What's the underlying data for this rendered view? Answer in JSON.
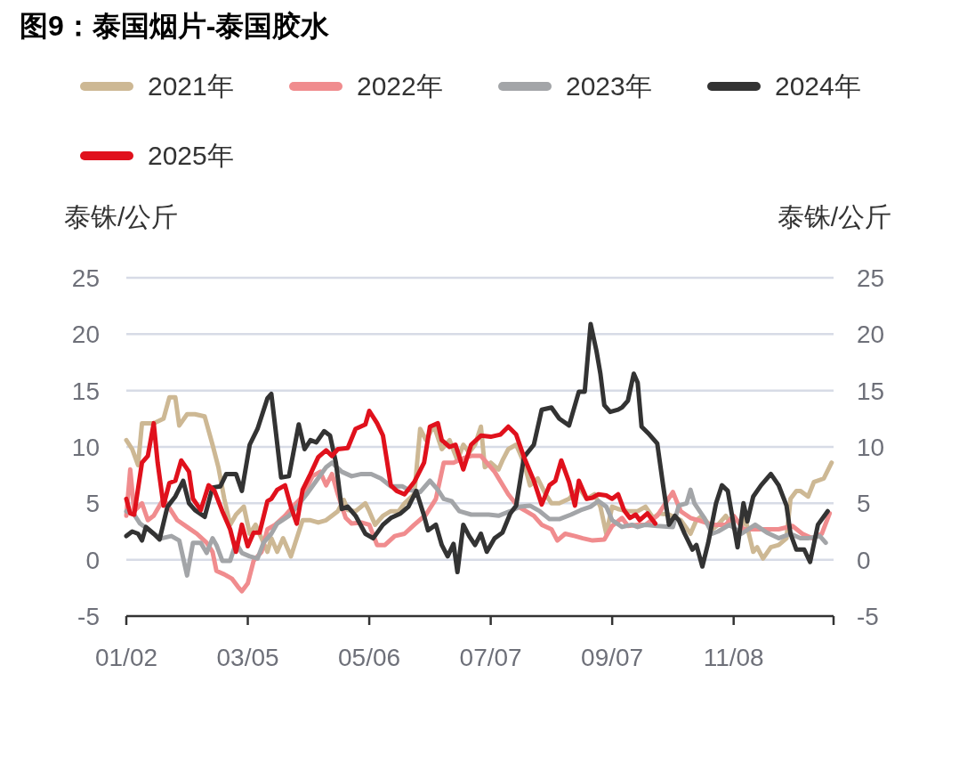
{
  "chart_data": {
    "type": "line",
    "title": "图9：泰国烟片-泰国胶水",
    "ylabel": "泰铢/公斤",
    "y2label": "泰铢/公斤",
    "xlim": [
      "--01-02",
      "--12-29"
    ],
    "xticks": [
      {
        "value": "--01-02",
        "label": "01/02"
      },
      {
        "value": "--03-05",
        "label": "03/05"
      },
      {
        "value": "--05-06",
        "label": "05/06"
      },
      {
        "value": "--07-07",
        "label": "07/07"
      },
      {
        "value": "--09-07",
        "label": "09/07"
      },
      {
        "value": "--11-08",
        "label": "11/08"
      },
      {
        "value": "--12-29",
        "label": null
      }
    ],
    "ylim": [
      -5,
      25
    ],
    "yticks": [
      -5,
      0,
      5,
      10,
      15,
      20,
      25
    ],
    "y2lim": [
      -5,
      25
    ],
    "y2ticks": [
      -5,
      0,
      5,
      10,
      15,
      20,
      25
    ],
    "grid": "y",
    "legend": "top",
    "series": [
      {
        "name": "2021年",
        "color": "#cdb894",
        "x": [
          "--01-02",
          "--01-05",
          "--01-08",
          "--01-10",
          "--01-13",
          "--01-16",
          "--01-21",
          "--01-24",
          "--01-27",
          "--01-29",
          "--02-02",
          "--02-06",
          "--02-11",
          "--02-15",
          "--02-18",
          "--02-21",
          "--02-24",
          "--02-27",
          "--03-03",
          "--03-06",
          "--03-09",
          "--03-12",
          "--03-15",
          "--03-17",
          "--03-20",
          "--03-23",
          "--03-27",
          "--03-30",
          "--04-02",
          "--04-06",
          "--04-10",
          "--04-14",
          "--04-20",
          "--04-23",
          "--04-25",
          "--04-29",
          "--05-04",
          "--05-06",
          "--05-09",
          "--05-13",
          "--05-17",
          "--05-21",
          "--05-24",
          "--05-29",
          "--06-01",
          "--06-04",
          "--06-08",
          "--06-12",
          "--06-16",
          "--06-20",
          "--06-23",
          "--06-26",
          "--06-29",
          "--07-02",
          "--07-04",
          "--07-07",
          "--07-11",
          "--07-13",
          "--07-16",
          "--07-20",
          "--07-24",
          "--07-27",
          "--07-31",
          "--08-04",
          "--08-07",
          "--08-11",
          "--08-16",
          "--08-21",
          "--08-25",
          "--08-29",
          "--09-01",
          "--09-04",
          "--09-07",
          "--09-10",
          "--09-15",
          "--09-20",
          "--09-24",
          "--09-28",
          "--10-01",
          "--10-06",
          "--10-12",
          "--10-17",
          "--10-20",
          "--10-23",
          "--10-28",
          "--10-31",
          "--11-04",
          "--11-07",
          "--11-10",
          "--11-14",
          "--11-18",
          "--11-20",
          "--11-23",
          "--11-27",
          "--12-01",
          "--12-05",
          "--12-07",
          "--12-10",
          "--12-12",
          "--12-16",
          "--12-19",
          "--12-24",
          "--12-28"
        ],
        "values": [
          10.6,
          9.8,
          8.4,
          12.1,
          12.1,
          12.1,
          12.5,
          14.4,
          14.4,
          11.9,
          12.9,
          12.9,
          12.7,
          10.2,
          8.2,
          5.4,
          3.1,
          4.0,
          4.7,
          2.3,
          3.1,
          1.9,
          0.7,
          1.9,
          0.7,
          1.9,
          0.3,
          1.9,
          3.5,
          3.5,
          3.3,
          3.5,
          4.3,
          5.3,
          4.4,
          4.3,
          5.0,
          4.3,
          3.1,
          3.9,
          4.3,
          4.3,
          5.0,
          5.8,
          11.6,
          10.6,
          11.9,
          9.8,
          10.6,
          8.8,
          10.2,
          9.5,
          10.2,
          11.8,
          8.2,
          8.6,
          8.0,
          8.8,
          9.8,
          10.2,
          8.6,
          6.6,
          7.2,
          5.8,
          5.0,
          5.0,
          5.4,
          6.4,
          5.4,
          5.8,
          4.7,
          2.3,
          4.7,
          4.5,
          4.3,
          4.3,
          4.7,
          3.7,
          4.1,
          4.0,
          3.5,
          2.3,
          3.5,
          3.9,
          2.7,
          3.1,
          3.9,
          3.1,
          2.3,
          3.6,
          0.7,
          1.1,
          0.1,
          1.1,
          1.3,
          1.9,
          5.4,
          6.1,
          6.1,
          5.6,
          6.9,
          7.2,
          8.6
        ]
      },
      {
        "name": "2022年",
        "color": "#f08c8e",
        "x": [
          "--01-02",
          "--01-04",
          "--01-06",
          "--01-10",
          "--01-13",
          "--01-16",
          "--01-21",
          "--01-25",
          "--01-28",
          "--02-02",
          "--02-07",
          "--02-12",
          "--02-15",
          "--02-17",
          "--02-21",
          "--02-25",
          "--02-28",
          "--03-02",
          "--03-05",
          "--03-08",
          "--03-12",
          "--03-15",
          "--03-19",
          "--03-24",
          "--03-28",
          "--04-02",
          "--04-07",
          "--04-11",
          "--04-14",
          "--04-17",
          "--04-20",
          "--04-24",
          "--04-27",
          "--05-02",
          "--05-06",
          "--05-10",
          "--05-14",
          "--05-19",
          "--05-24",
          "--05-29",
          "--06-04",
          "--06-09",
          "--06-13",
          "--06-18",
          "--06-23",
          "--06-27",
          "--07-02",
          "--07-09",
          "--07-16",
          "--07-21",
          "--07-25",
          "--07-29",
          "--08-02",
          "--08-07",
          "--08-10",
          "--08-14",
          "--08-19",
          "--08-23",
          "--08-28",
          "--09-03",
          "--09-07",
          "--09-12",
          "--09-15",
          "--09-20",
          "--09-24",
          "--09-30",
          "--10-08",
          "--10-12",
          "--10-17",
          "--10-21",
          "--10-28",
          "--11-04",
          "--11-08",
          "--11-13",
          "--11-19",
          "--11-27",
          "--12-01",
          "--12-08",
          "--12-13",
          "--12-18",
          "--12-23",
          "--12-27"
        ],
        "values": [
          3.9,
          8.0,
          4.3,
          5.0,
          3.5,
          3.9,
          5.4,
          4.3,
          3.5,
          2.9,
          2.3,
          1.5,
          0.7,
          -1.0,
          -1.3,
          -1.7,
          -2.4,
          -2.8,
          -2.1,
          -0.1,
          0.7,
          2.7,
          3.1,
          3.9,
          4.7,
          5.6,
          7.4,
          7.8,
          6.6,
          7.6,
          5.8,
          3.7,
          3.2,
          3.3,
          3.1,
          1.3,
          1.3,
          2.1,
          2.3,
          3.1,
          4.0,
          5.4,
          8.6,
          8.6,
          9.0,
          9.2,
          9.2,
          7.8,
          5.8,
          4.7,
          4.3,
          3.9,
          3.1,
          2.7,
          1.7,
          2.3,
          2.1,
          1.9,
          1.7,
          1.8,
          3.0,
          3.7,
          3.0,
          3.1,
          3.1,
          3.9,
          6.0,
          4.3,
          3.7,
          3.5,
          3.1,
          3.1,
          3.9,
          2.7,
          2.7,
          2.7,
          2.7,
          3.0,
          2.3,
          1.9,
          2.3,
          4.1
        ]
      },
      {
        "name": "2023年",
        "color": "#a3a5a8",
        "x": [
          "--01-02",
          "--01-06",
          "--01-09",
          "--01-13",
          "--01-16",
          "--01-20",
          "--01-25",
          "--01-29",
          "--02-02",
          "--02-05",
          "--02-09",
          "--02-12",
          "--02-15",
          "--02-17",
          "--02-20",
          "--02-24",
          "--02-27",
          "--03-02",
          "--03-06",
          "--03-10",
          "--03-13",
          "--03-17",
          "--03-20",
          "--03-26",
          "--03-30",
          "--04-04",
          "--04-09",
          "--04-14",
          "--04-17",
          "--04-22",
          "--04-27",
          "--05-02",
          "--05-07",
          "--05-12",
          "--05-17",
          "--05-23",
          "--05-26",
          "--06-01",
          "--06-06",
          "--06-10",
          "--06-13",
          "--06-17",
          "--06-21",
          "--06-27",
          "--07-02",
          "--07-06",
          "--07-11",
          "--07-17",
          "--07-22",
          "--07-27",
          "--08-01",
          "--08-06",
          "--08-11",
          "--08-17",
          "--08-22",
          "--08-27",
          "--08-31",
          "--09-04",
          "--09-07",
          "--09-12",
          "--09-17",
          "--09-20",
          "--09-24",
          "--09-30",
          "--10-08",
          "--10-11",
          "--10-15",
          "--10-17",
          "--10-19",
          "--10-24",
          "--10-28",
          "--10-31",
          "--11-06",
          "--11-12",
          "--11-19",
          "--11-25",
          "--12-01",
          "--12-07",
          "--12-12",
          "--12-16",
          "--12-22",
          "--12-25"
        ],
        "values": [
          4.3,
          4.0,
          3.2,
          2.7,
          2.3,
          1.9,
          2.1,
          1.7,
          -1.4,
          1.5,
          1.5,
          0.6,
          1.9,
          1.3,
          -0.1,
          -0.1,
          1.5,
          0.6,
          0.3,
          0.1,
          1.5,
          2.3,
          3.2,
          3.9,
          4.7,
          5.8,
          7.0,
          8.2,
          8.6,
          7.8,
          7.4,
          7.6,
          7.6,
          7.2,
          6.5,
          6.5,
          6.2,
          6.0,
          7.0,
          6.2,
          5.4,
          5.2,
          4.3,
          4.0,
          4.0,
          4.0,
          3.9,
          4.3,
          4.7,
          4.8,
          4.3,
          3.6,
          3.6,
          4.0,
          4.4,
          4.7,
          5.2,
          4.7,
          3.5,
          2.9,
          3.1,
          2.9,
          3.1,
          3.0,
          2.9,
          4.8,
          5.0,
          6.2,
          5.0,
          3.7,
          2.3,
          2.5,
          3.1,
          2.3,
          3.1,
          2.4,
          1.9,
          2.3,
          1.9,
          1.9,
          2.1,
          1.5
        ]
      },
      {
        "name": "2024年",
        "color": "#333333",
        "x": [
          "--01-02",
          "--01-05",
          "--01-08",
          "--01-10",
          "--01-12",
          "--01-16",
          "--01-19",
          "--01-23",
          "--01-27",
          "--01-31",
          "--02-03",
          "--02-06",
          "--02-11",
          "--02-15",
          "--02-19",
          "--02-22",
          "--02-27",
          "--03-02",
          "--03-06",
          "--03-10",
          "--03-15",
          "--03-17",
          "--03-19",
          "--03-22",
          "--03-26",
          "--03-31",
          "--04-03",
          "--04-06",
          "--04-09",
          "--04-13",
          "--04-16",
          "--04-19",
          "--04-22",
          "--04-25",
          "--04-29",
          "--05-04",
          "--05-08",
          "--05-13",
          "--05-17",
          "--05-22",
          "--05-26",
          "--05-30",
          "--06-03",
          "--06-05",
          "--06-09",
          "--06-12",
          "--06-15",
          "--06-18",
          "--06-20",
          "--06-23",
          "--06-26",
          "--06-29",
          "--07-02",
          "--07-05",
          "--07-09",
          "--07-13",
          "--07-17",
          "--07-20",
          "--07-24",
          "--07-29",
          "--08-02",
          "--08-07",
          "--08-11",
          "--08-16",
          "--08-21",
          "--08-24",
          "--08-27",
          "--08-30",
          "--09-01",
          "--09-03",
          "--09-06",
          "--09-10",
          "--09-12",
          "--09-15",
          "--09-18",
          "--09-20",
          "--09-22",
          "--09-26",
          "--09-30",
          "--10-03",
          "--10-06",
          "--10-09",
          "--10-11",
          "--10-14",
          "--10-18",
          "--10-20",
          "--10-23",
          "--10-26",
          "--10-30",
          "--11-02",
          "--11-05",
          "--11-08",
          "--11-10",
          "--11-13",
          "--11-15",
          "--11-18",
          "--11-22",
          "--11-27",
          "--12-01",
          "--12-05",
          "--12-07",
          "--12-10",
          "--12-14",
          "--12-17",
          "--12-21",
          "--12-26"
        ],
        "values": [
          2.1,
          2.5,
          2.3,
          1.7,
          2.9,
          2.3,
          1.8,
          4.7,
          5.6,
          7.0,
          5.0,
          4.4,
          3.8,
          6.4,
          6.5,
          7.6,
          7.6,
          6.1,
          10.2,
          11.6,
          14.3,
          14.7,
          11.8,
          7.3,
          7.4,
          12.0,
          9.8,
          10.6,
          10.4,
          11.4,
          11.0,
          8.6,
          4.5,
          4.7,
          3.9,
          2.3,
          1.9,
          3.1,
          3.7,
          4.1,
          4.7,
          6.1,
          3.9,
          2.6,
          3.1,
          1.3,
          0.3,
          1.4,
          -1.1,
          3.1,
          2.1,
          1.3,
          2.3,
          0.7,
          1.9,
          2.4,
          4.1,
          4.8,
          9.1,
          10.2,
          13.3,
          13.5,
          12.5,
          11.9,
          14.9,
          14.9,
          20.9,
          18.5,
          16.5,
          13.7,
          13.1,
          13.3,
          13.5,
          14.1,
          16.5,
          15.7,
          11.8,
          11.1,
          10.3,
          6.6,
          3.1,
          3.9,
          3.5,
          2.3,
          0.9,
          1.3,
          -0.6,
          1.5,
          5.0,
          6.6,
          6.1,
          3.1,
          1.1,
          5.0,
          3.4,
          5.6,
          6.6,
          7.6,
          6.6,
          4.8,
          2.3,
          0.9,
          0.9,
          -0.2,
          3.1,
          4.3
        ]
      },
      {
        "name": "2025年",
        "color": "#e0111c",
        "x": [
          "--01-02",
          "--01-04",
          "--01-06",
          "--01-10",
          "--01-13",
          "--01-16",
          "--01-18",
          "--01-21",
          "--01-24",
          "--01-27",
          "--01-30",
          "--02-03",
          "--02-05",
          "--02-09",
          "--02-13",
          "--02-16",
          "--02-20",
          "--02-24",
          "--02-27",
          "--03-02",
          "--03-05",
          "--03-08",
          "--03-11",
          "--03-15",
          "--03-17",
          "--03-20",
          "--03-24",
          "--03-27",
          "--03-30",
          "--04-02",
          "--04-06",
          "--04-10",
          "--04-14",
          "--04-17",
          "--04-20",
          "--04-25",
          "--04-29",
          "--05-04",
          "--05-06",
          "--05-10",
          "--05-13",
          "--05-17",
          "--05-20",
          "--05-24",
          "--05-29",
          "--06-03",
          "--06-06",
          "--06-10",
          "--06-12",
          "--06-16",
          "--06-19",
          "--06-23",
          "--06-27",
          "--07-02",
          "--07-07",
          "--07-12",
          "--07-16",
          "--07-20",
          "--07-24",
          "--07-29",
          "--08-02",
          "--08-06",
          "--08-09",
          "--08-12",
          "--08-16",
          "--08-19",
          "--08-21",
          "--08-25",
          "--08-28",
          "--08-31",
          "--09-04",
          "--09-07",
          "--09-10",
          "--09-13",
          "--09-16",
          "--09-19",
          "--09-21",
          "--09-25",
          "--09-29"
        ],
        "values": [
          5.4,
          4.1,
          4.0,
          8.6,
          9.2,
          12.1,
          8.6,
          4.8,
          6.8,
          7.0,
          8.8,
          7.8,
          5.4,
          4.4,
          6.6,
          6.1,
          4.3,
          2.7,
          0.7,
          3.1,
          1.2,
          2.4,
          2.4,
          5.2,
          5.4,
          6.2,
          6.6,
          4.7,
          3.2,
          6.2,
          7.6,
          9.1,
          9.7,
          9.2,
          9.8,
          9.9,
          11.6,
          12.0,
          13.2,
          12.1,
          11.0,
          6.6,
          6.1,
          5.8,
          6.9,
          8.6,
          11.8,
          12.1,
          10.6,
          10.0,
          10.2,
          8.0,
          10.2,
          11.0,
          10.9,
          11.1,
          11.8,
          11.1,
          9.1,
          7.0,
          4.9,
          6.6,
          7.0,
          8.8,
          6.9,
          4.8,
          7.0,
          5.4,
          5.5,
          5.8,
          5.7,
          5.4,
          5.8,
          4.4,
          3.7,
          4.0,
          3.5,
          4.1,
          3.2
        ]
      }
    ]
  }
}
